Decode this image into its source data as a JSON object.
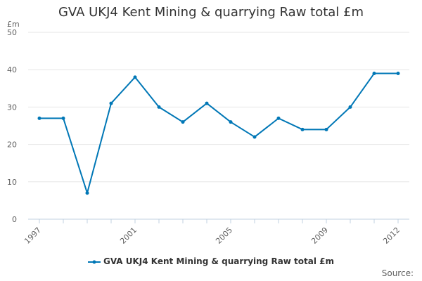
{
  "chart_data": {
    "type": "line",
    "title": "GVA UKJ4 Kent Mining & quarrying Raw total £m",
    "ylabel": "£m",
    "xlabel": "",
    "ylim": [
      0,
      50
    ],
    "yticks": [
      0,
      10,
      20,
      30,
      40,
      50
    ],
    "x": [
      1997,
      1998,
      1999,
      2000,
      2001,
      2002,
      2003,
      2004,
      2005,
      2006,
      2007,
      2008,
      2009,
      2010,
      2011,
      2012
    ],
    "xtick_labels": [
      "1997",
      "2001",
      "2005",
      "2009",
      "2012"
    ],
    "series": [
      {
        "name": "GVA UKJ4 Kent Mining & quarrying Raw total £m",
        "color": "#0077b6",
        "values": [
          27,
          27,
          7,
          31,
          38,
          30,
          26,
          31,
          26,
          22,
          27,
          24,
          24,
          30,
          39,
          39
        ]
      }
    ],
    "grid": true,
    "legend_position": "bottom-center"
  },
  "footer": {
    "source_label": "Source:"
  }
}
